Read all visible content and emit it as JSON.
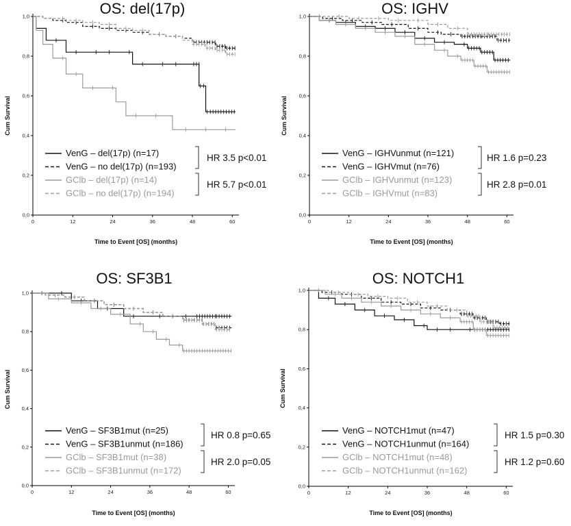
{
  "chart_data": [
    {
      "type": "line",
      "title": "OS: del(17p)",
      "xlabel": "Time to Event [OS] (months)",
      "ylabel": "Cum Survival",
      "xlim": [
        0,
        62
      ],
      "ylim": [
        0.0,
        1.0
      ],
      "x_ticks": [
        "0",
        "12",
        "24",
        "36",
        "48",
        "60"
      ],
      "y_ticks": [
        "0,0",
        "0,2",
        "0,4",
        "0,6",
        "0,8",
        "1,0"
      ],
      "series": [
        {
          "name": "VenG – del(17p) (n=17)",
          "color": "#111111",
          "dash": "solid",
          "x": [
            0,
            1,
            4,
            10,
            20,
            30,
            40,
            48,
            50,
            51,
            52,
            53,
            57,
            61
          ],
          "y": [
            1.0,
            0.94,
            0.88,
            0.82,
            0.82,
            0.76,
            0.76,
            0.76,
            0.65,
            0.65,
            0.52,
            0.52,
            0.52,
            0.52
          ]
        },
        {
          "name": "VenG – no del(17p) (n=193)",
          "color": "#111111",
          "dash": "dashed",
          "x": [
            0,
            3,
            6,
            10,
            15,
            20,
            25,
            30,
            35,
            40,
            45,
            48,
            52,
            55,
            58,
            61
          ],
          "y": [
            1.0,
            0.99,
            0.98,
            0.97,
            0.95,
            0.94,
            0.93,
            0.92,
            0.91,
            0.9,
            0.89,
            0.87,
            0.87,
            0.85,
            0.84,
            0.84
          ]
        },
        {
          "name": "GClb – del(17p) (n=14)",
          "color": "#9a9a9a",
          "dash": "solid",
          "x": [
            0,
            1,
            3,
            6,
            10,
            15,
            25,
            28,
            42,
            43,
            61
          ],
          "y": [
            1.0,
            0.93,
            0.86,
            0.79,
            0.71,
            0.64,
            0.57,
            0.5,
            0.43,
            0.43,
            0.43
          ]
        },
        {
          "name": "GClb – no del(17p) (n=194)",
          "color": "#9a9a9a",
          "dash": "dashed",
          "x": [
            0,
            3,
            6,
            10,
            15,
            20,
            25,
            30,
            35,
            40,
            45,
            48,
            52,
            55,
            58,
            61
          ],
          "y": [
            1.0,
            0.99,
            0.99,
            0.98,
            0.97,
            0.96,
            0.94,
            0.93,
            0.91,
            0.9,
            0.88,
            0.86,
            0.84,
            0.83,
            0.81,
            0.81
          ]
        }
      ],
      "hr_annotations": [
        "HR 3.5 p<0.01",
        "HR 5.7 p<0.01"
      ]
    },
    {
      "type": "line",
      "title": "OS: IGHV",
      "xlabel": "Time to Event [OS] (months)",
      "ylabel": "Cum Survival",
      "xlim": [
        0,
        62
      ],
      "ylim": [
        0.0,
        1.0
      ],
      "x_ticks": [
        "0",
        "12",
        "24",
        "36",
        "48",
        "60"
      ],
      "y_ticks": [
        "0,0",
        "0,2",
        "0,4",
        "0,6",
        "0,8",
        "1,0"
      ],
      "series": [
        {
          "name": "VenG – IGHVunmut (n=121)",
          "color": "#111111",
          "dash": "solid",
          "x": [
            0,
            3,
            8,
            14,
            20,
            26,
            32,
            38,
            44,
            48,
            52,
            56,
            61
          ],
          "y": [
            1.0,
            0.98,
            0.97,
            0.95,
            0.94,
            0.92,
            0.89,
            0.87,
            0.86,
            0.84,
            0.82,
            0.78,
            0.78
          ]
        },
        {
          "name": "VenG – IGHVmut (n=76)",
          "color": "#111111",
          "dash": "dashed",
          "x": [
            0,
            4,
            10,
            16,
            22,
            30,
            36,
            40,
            46,
            52,
            57,
            61
          ],
          "y": [
            1.0,
            0.99,
            0.98,
            0.97,
            0.96,
            0.94,
            0.92,
            0.91,
            0.9,
            0.9,
            0.88,
            0.88
          ]
        },
        {
          "name": "GClb – IGHVunmut (n=123)",
          "color": "#9a9a9a",
          "dash": "solid",
          "x": [
            0,
            3,
            8,
            14,
            20,
            26,
            32,
            38,
            42,
            46,
            50,
            54,
            61
          ],
          "y": [
            1.0,
            0.98,
            0.96,
            0.94,
            0.92,
            0.9,
            0.86,
            0.83,
            0.8,
            0.78,
            0.75,
            0.72,
            0.72
          ]
        },
        {
          "name": "GClb – IGHVmut (n=83)",
          "color": "#9a9a9a",
          "dash": "dashed",
          "x": [
            0,
            6,
            12,
            18,
            24,
            30,
            36,
            42,
            48,
            54,
            61
          ],
          "y": [
            1.0,
            1.0,
            0.99,
            0.99,
            0.98,
            0.98,
            0.96,
            0.94,
            0.91,
            0.91,
            0.91
          ]
        }
      ],
      "hr_annotations": [
        "HR 1.6 p=0.23",
        "HR 2.8 p=0.01"
      ]
    },
    {
      "type": "line",
      "title": "OS: SF3B1",
      "xlabel": "Time to Event [OS] (months)",
      "ylabel": "Cum Survival",
      "xlim": [
        0,
        62
      ],
      "ylim": [
        0.0,
        1.0
      ],
      "x_ticks": [
        "0",
        "12",
        "24",
        "36",
        "48",
        "60"
      ],
      "y_ticks": [
        "0,0",
        "0,2",
        "0,4",
        "0,6",
        "0,8",
        "1,0"
      ],
      "series": [
        {
          "name": "VenG – SF3B1mut (n=25)",
          "color": "#111111",
          "dash": "solid",
          "x": [
            0,
            6,
            12,
            20,
            28,
            36,
            44,
            50,
            56,
            61
          ],
          "y": [
            1.0,
            1.0,
            0.96,
            0.92,
            0.88,
            0.88,
            0.88,
            0.88,
            0.88,
            0.88
          ]
        },
        {
          "name": "VenG – SF3B1unmut (n=186)",
          "color": "#111111",
          "dash": "dashed",
          "x": [
            0,
            4,
            10,
            16,
            22,
            28,
            34,
            40,
            46,
            52,
            56,
            61
          ],
          "y": [
            1.0,
            0.99,
            0.98,
            0.96,
            0.94,
            0.92,
            0.9,
            0.88,
            0.86,
            0.84,
            0.82,
            0.82
          ]
        },
        {
          "name": "GClb – SF3B1mut (n=38)",
          "color": "#9a9a9a",
          "dash": "solid",
          "x": [
            0,
            5,
            12,
            18,
            24,
            30,
            34,
            38,
            42,
            46,
            50,
            61
          ],
          "y": [
            1.0,
            0.97,
            0.95,
            0.92,
            0.89,
            0.84,
            0.8,
            0.76,
            0.73,
            0.7,
            0.7,
            0.7
          ]
        },
        {
          "name": "GClb – SF3B1unmut (n=172)",
          "color": "#9a9a9a",
          "dash": "dashed",
          "x": [
            0,
            4,
            10,
            16,
            22,
            28,
            34,
            40,
            46,
            52,
            56,
            61
          ],
          "y": [
            1.0,
            0.99,
            0.98,
            0.96,
            0.94,
            0.92,
            0.9,
            0.88,
            0.86,
            0.84,
            0.81,
            0.81
          ]
        }
      ],
      "hr_annotations": [
        "HR 0.8 p=0.65",
        "HR 2.0 p=0.05"
      ]
    },
    {
      "type": "line",
      "title": "OS: NOTCH1",
      "xlabel": "Time to Event [OS] (months)",
      "ylabel": "Cum Survival",
      "xlim": [
        0,
        62
      ],
      "ylim": [
        0.0,
        1.0
      ],
      "x_ticks": [
        "0",
        "12",
        "24",
        "36",
        "48",
        "60"
      ],
      "y_ticks": [
        "0,0",
        "0,2",
        "0,4",
        "0,6",
        "0,8",
        "1,0"
      ],
      "series": [
        {
          "name": "VenG – NOTCH1mut (n=47)",
          "color": "#111111",
          "dash": "solid",
          "x": [
            0,
            3,
            8,
            14,
            20,
            26,
            32,
            36,
            40,
            50,
            61
          ],
          "y": [
            1.0,
            0.96,
            0.93,
            0.9,
            0.87,
            0.85,
            0.82,
            0.8,
            0.8,
            0.8,
            0.8
          ]
        },
        {
          "name": "VenG – NOTCH1unmut (n=164)",
          "color": "#111111",
          "dash": "dashed",
          "x": [
            0,
            4,
            10,
            16,
            22,
            28,
            34,
            40,
            46,
            50,
            54,
            58,
            61
          ],
          "y": [
            1.0,
            0.99,
            0.98,
            0.96,
            0.94,
            0.93,
            0.91,
            0.9,
            0.88,
            0.86,
            0.84,
            0.83,
            0.83
          ]
        },
        {
          "name": "GClb – NOTCH1mut (n=48)",
          "color": "#9a9a9a",
          "dash": "solid",
          "x": [
            0,
            5,
            10,
            16,
            22,
            28,
            34,
            40,
            46,
            50,
            54,
            61
          ],
          "y": [
            1.0,
            0.98,
            0.96,
            0.94,
            0.92,
            0.9,
            0.88,
            0.86,
            0.84,
            0.8,
            0.77,
            0.77
          ]
        },
        {
          "name": "GClb – NOTCH1unmut (n=162)",
          "color": "#9a9a9a",
          "dash": "dashed",
          "x": [
            0,
            6,
            12,
            18,
            24,
            30,
            36,
            42,
            48,
            52,
            56,
            61
          ],
          "y": [
            1.0,
            0.99,
            0.98,
            0.97,
            0.96,
            0.94,
            0.92,
            0.9,
            0.87,
            0.84,
            0.81,
            0.81
          ]
        }
      ],
      "hr_annotations": [
        "HR 1.5 p=0.30",
        "HR 1.2 p=0.60"
      ]
    }
  ]
}
